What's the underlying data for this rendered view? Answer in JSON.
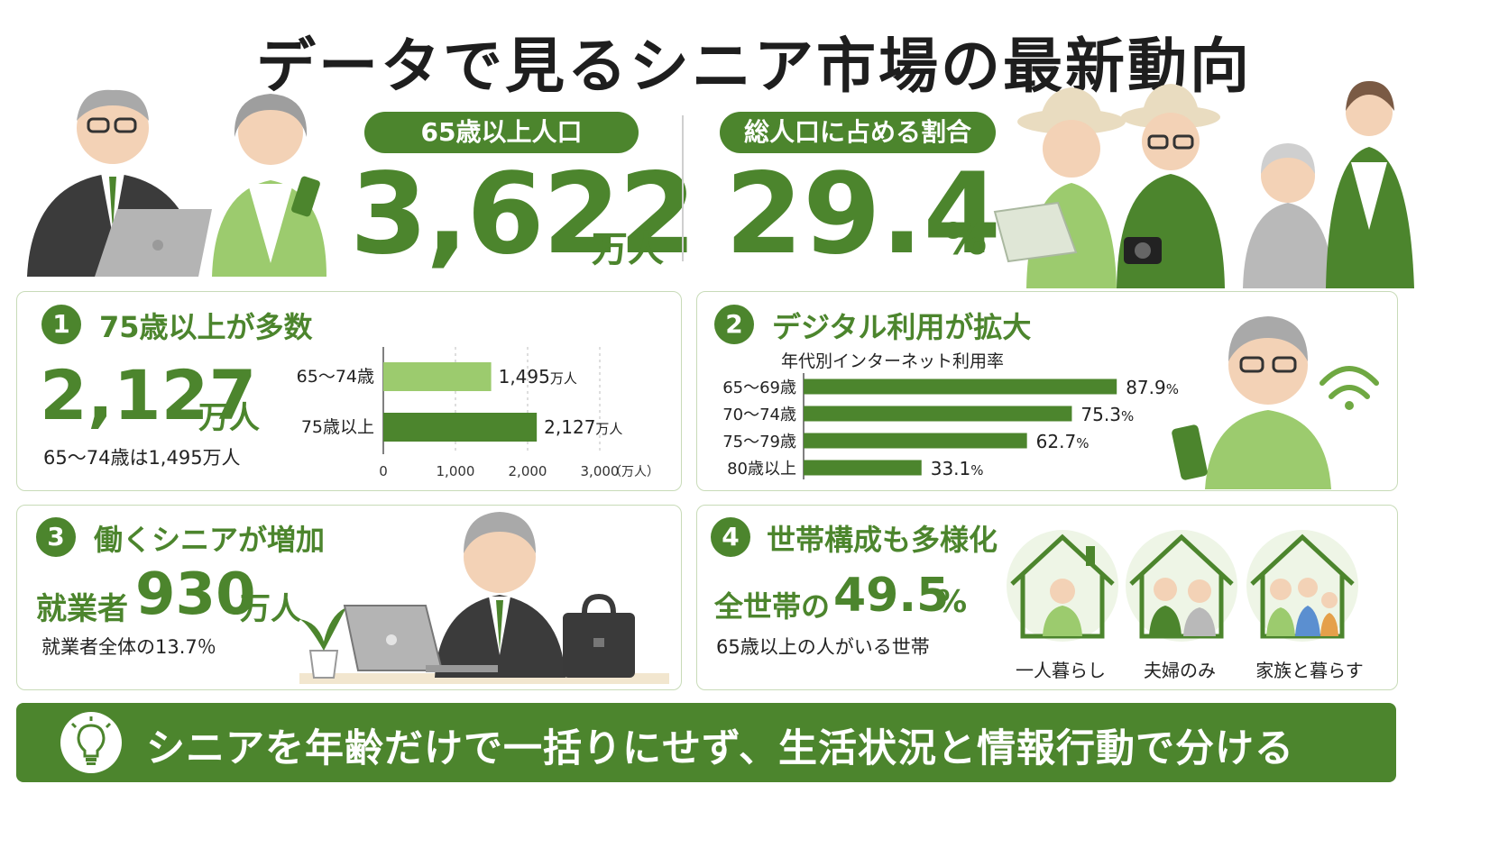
{
  "title": "データで見るシニア市場の最新動向",
  "colors": {
    "accent": "#4c852d",
    "light": "#9ccb6e",
    "panel_border": "#c8dbb8"
  },
  "headline": {
    "population": {
      "label": "65歳以上人口",
      "value": "3,622",
      "unit": "万人"
    },
    "share": {
      "label": "総人口に占める割合",
      "value": "29.4",
      "unit": "%"
    }
  },
  "sections": [
    {
      "number": "1",
      "title": "75歳以上が多数",
      "big_value": "2,127",
      "big_unit": "万人",
      "note": "65～74歳は1,495万人"
    },
    {
      "number": "2",
      "title": "デジタル利用が拡大",
      "chart_title": "年代別インターネット利用率"
    },
    {
      "number": "3",
      "title": "働くシニアが増加",
      "prefix": "就業者",
      "big_value": "930",
      "big_unit": "万人",
      "note": "就業者全体の13.7％"
    },
    {
      "number": "4",
      "title": "世帯構成も多様化",
      "prefix": "全世帯の",
      "big_value": "49.5",
      "big_unit": "%",
      "note": "65歳以上の人がいる世帯",
      "house_labels": [
        "一人暮らし",
        "夫婦のみ",
        "家族と暮らす"
      ]
    }
  ],
  "footer": {
    "text": "シニアを年齢だけで一括りにせず、生活状況と情報行動で分ける",
    "icon": "lightbulb-icon"
  },
  "chart_data": [
    {
      "type": "bar",
      "orientation": "horizontal",
      "categories": [
        "65～74歳",
        "75歳以上"
      ],
      "values": [
        1495,
        2127
      ],
      "value_labels": [
        "1,495",
        "2,127"
      ],
      "value_unit": "万人",
      "xlim": [
        0,
        3000
      ],
      "xticks": [
        "0",
        "1,000",
        "2,000",
        "3,000"
      ],
      "xunit": "（万人）",
      "grid": true,
      "colors": [
        "#9ccb6e",
        "#4c852d"
      ]
    },
    {
      "type": "bar",
      "orientation": "horizontal",
      "title": "年代別インターネット利用率",
      "categories": [
        "65～69歳",
        "70～74歳",
        "75～79歳",
        "80歳以上"
      ],
      "values": [
        87.9,
        75.3,
        62.7,
        33.1
      ],
      "value_labels": [
        "87.9",
        "75.3",
        "62.7",
        "33.1"
      ],
      "value_unit": "%",
      "xlim": [
        0,
        100
      ],
      "colors": [
        "#4c852d"
      ]
    }
  ]
}
